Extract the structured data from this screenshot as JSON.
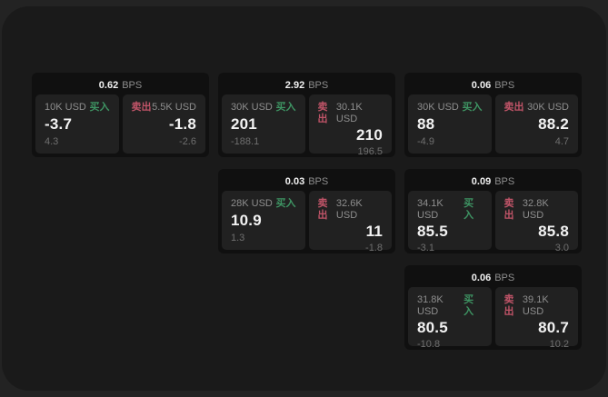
{
  "theme": {
    "page_bg": "#232323",
    "widget_bg": "#1a1a1a",
    "card_bg": "#101010",
    "panel_bg": "#212121",
    "text_primary": "#f2f2f2",
    "text_secondary": "#8e8e8e",
    "text_dim": "#6f6f6f",
    "buy_color": "#3e9463",
    "sell_color": "#c05468"
  },
  "cards": [
    {
      "bps_value": "0.62",
      "bps_unit": "BPS",
      "buy": {
        "size": "10K USD",
        "label": "买入",
        "value": "-3.7",
        "sub": "4.3"
      },
      "sell": {
        "label": "卖出",
        "size": "5.5K USD",
        "value": "-1.8",
        "sub": "-2.6"
      }
    },
    {
      "bps_value": "2.92",
      "bps_unit": "BPS",
      "buy": {
        "size": "30K USD",
        "label": "买入",
        "value": "201",
        "sub": "-188.1"
      },
      "sell": {
        "label": "卖出",
        "size": "30.1K USD",
        "value": "210",
        "sub": "196.5"
      }
    },
    {
      "bps_value": "0.06",
      "bps_unit": "BPS",
      "buy": {
        "size": "30K USD",
        "label": "买入",
        "value": "88",
        "sub": "-4.9"
      },
      "sell": {
        "label": "卖出",
        "size": "30K USD",
        "value": "88.2",
        "sub": "4.7"
      }
    },
    {
      "bps_value": "0.03",
      "bps_unit": "BPS",
      "buy": {
        "size": "28K USD",
        "label": "买入",
        "value": "10.9",
        "sub": "1.3"
      },
      "sell": {
        "label": "卖出",
        "size": "32.6K USD",
        "value": "11",
        "sub": "-1.8"
      }
    },
    {
      "bps_value": "0.09",
      "bps_unit": "BPS",
      "buy": {
        "size": "34.1K USD",
        "label": "买入",
        "value": "85.5",
        "sub": "-3.1"
      },
      "sell": {
        "label": "卖出",
        "size": "32.8K USD",
        "value": "85.8",
        "sub": "3.0"
      }
    },
    {
      "bps_value": "0.06",
      "bps_unit": "BPS",
      "buy": {
        "size": "31.8K USD",
        "label": "买入",
        "value": "80.5",
        "sub": "-10.8"
      },
      "sell": {
        "label": "卖出",
        "size": "39.1K USD",
        "value": "80.7",
        "sub": "10.2"
      }
    }
  ]
}
